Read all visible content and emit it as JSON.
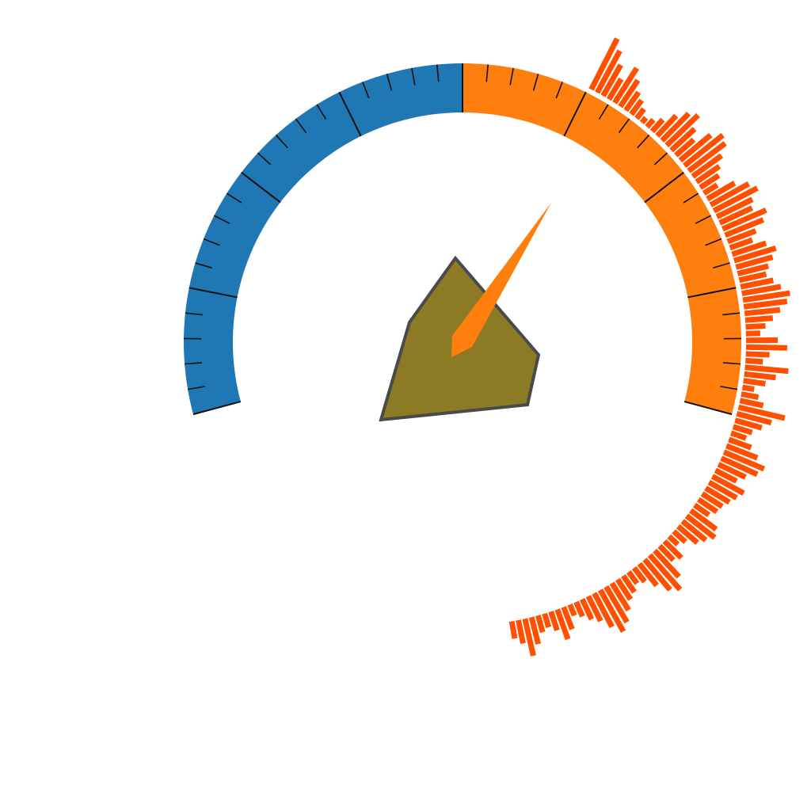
{
  "chart_data": {
    "type": "gauge",
    "gauge": {
      "value_range": [
        0,
        100
      ],
      "bands": [
        {
          "name": "",
          "from": 0,
          "to": 50,
          "color": "#1f77b4"
        },
        {
          "name": "",
          "from": 50,
          "to": 100,
          "color": "#ff7f0e"
        }
      ],
      "major_ticks": [
        0,
        12.5,
        25,
        37.5,
        50,
        62.5,
        75,
        87.5,
        100
      ],
      "minor_tick_step": 2.5,
      "needle_value": 68,
      "needle_color": "#ff7f0e",
      "center_polygon_fill": "#8c7b24",
      "center_polygon_stroke": "#4a4a4a"
    },
    "radial_bars": {
      "color": "#ff4f00",
      "start_value": 64,
      "end_value": 170,
      "values": [
        72,
        60,
        45,
        30,
        52,
        40,
        28,
        22,
        15,
        8,
        12,
        20,
        35,
        48,
        55,
        40,
        30,
        50,
        62,
        58,
        45,
        35,
        28,
        20,
        40,
        55,
        62,
        50,
        45,
        60,
        52,
        38,
        30,
        45,
        55,
        48,
        40,
        35,
        42,
        50,
        60,
        55,
        45,
        35,
        25,
        18,
        40,
        52,
        30,
        22,
        55,
        40,
        28,
        15,
        22,
        30,
        60,
        45,
        35,
        25,
        20,
        30,
        42,
        55,
        50,
        38,
        30,
        45,
        40,
        35,
        30,
        28,
        22,
        40,
        45,
        38,
        32,
        20,
        15,
        30,
        25,
        45,
        58,
        50,
        35,
        22,
        18,
        25,
        30,
        40,
        52,
        60,
        48,
        35,
        28,
        20,
        15,
        30,
        40,
        25,
        18,
        22,
        35,
        48,
        30,
        22
      ]
    }
  }
}
